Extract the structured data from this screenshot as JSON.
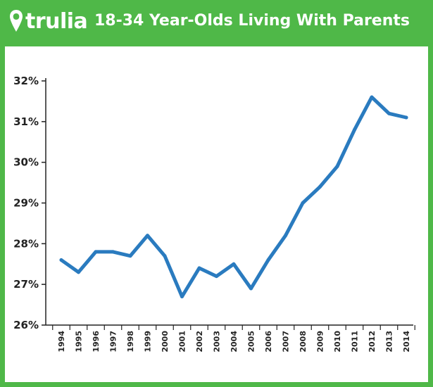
{
  "brand": {
    "logo_text": "trulia",
    "accent_color": "#4fb848",
    "line_color": "#2a7bbf"
  },
  "chart_data": {
    "type": "line",
    "title": "18-34 Year-Olds Living With Parents",
    "xlabel": "",
    "ylabel": "",
    "x": [
      "1994",
      "1995",
      "1996",
      "1997",
      "1998",
      "1999",
      "2000",
      "2001",
      "2002",
      "2003",
      "2004",
      "2005",
      "2006",
      "2007",
      "2008",
      "2009",
      "2010",
      "2011",
      "2012",
      "2013",
      "2014"
    ],
    "series": [
      {
        "values": [
          27.6,
          27.3,
          27.8,
          27.8,
          27.7,
          28.2,
          27.7,
          26.7,
          27.4,
          27.2,
          27.5,
          26.9,
          27.6,
          28.2,
          29.0,
          29.4,
          29.9,
          30.8,
          31.6,
          31.2,
          31.1
        ]
      }
    ],
    "ylim": [
      26,
      32
    ],
    "yticks": [
      "26%",
      "27%",
      "28%",
      "29%",
      "30%",
      "31%",
      "32%"
    ],
    "ytick_values": [
      26,
      27,
      28,
      29,
      30,
      31,
      32
    ],
    "grid": false,
    "legend": "none"
  }
}
